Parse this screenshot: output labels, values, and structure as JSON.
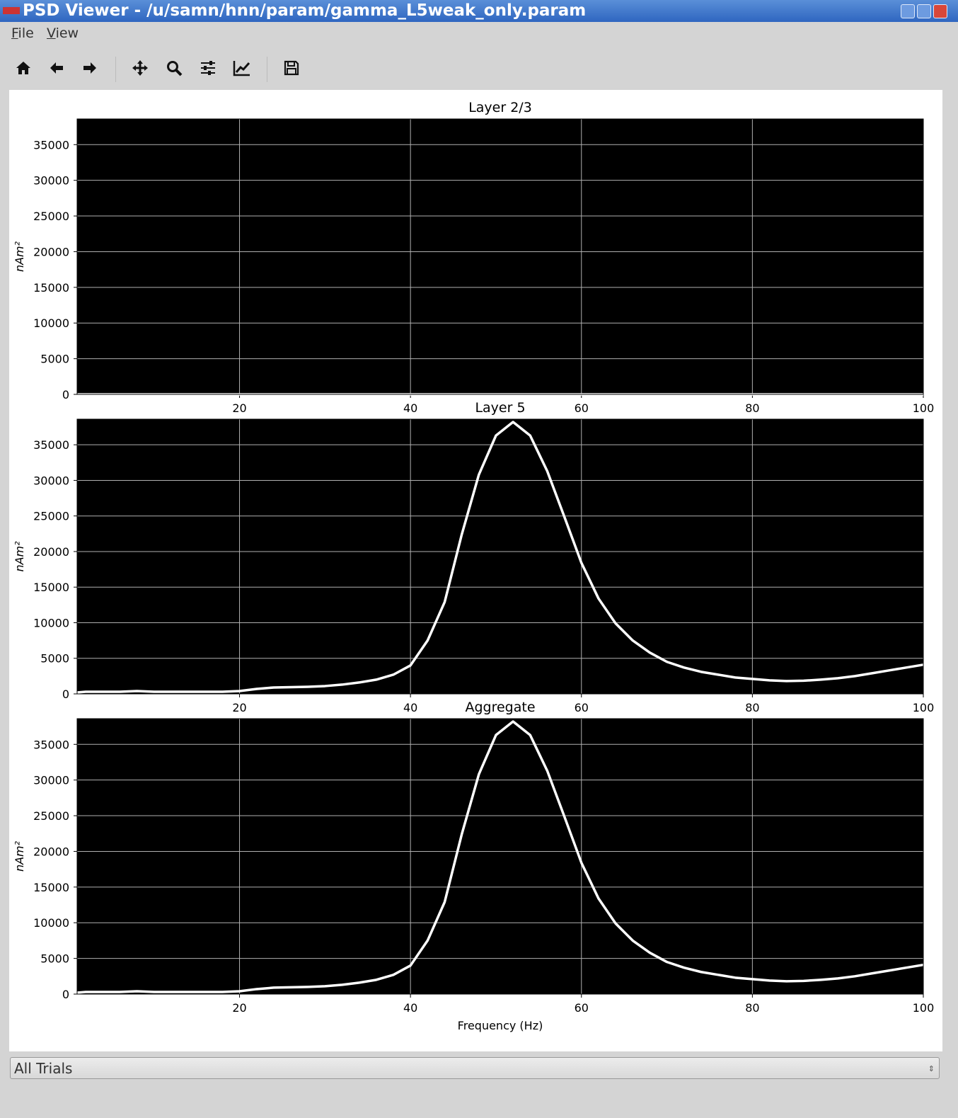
{
  "window": {
    "title": "PSD Viewer - /u/samn/hnn/param/gamma_L5weak_only.param"
  },
  "menu": [
    "File",
    "View"
  ],
  "chart_data": [
    {
      "type": "line",
      "title": "Layer 2/3",
      "ylabel": "nAm²",
      "x": [
        1,
        2,
        4,
        6,
        8,
        10,
        12,
        14,
        16,
        18,
        20,
        22,
        24,
        26,
        28,
        30,
        32,
        34,
        36,
        38,
        40,
        42,
        44,
        46,
        48,
        50,
        52,
        54,
        56,
        58,
        60,
        62,
        64,
        66,
        68,
        70,
        72,
        74,
        76,
        78,
        80,
        82,
        84,
        86,
        88,
        90,
        92,
        94,
        96,
        98,
        100
      ],
      "values": [
        0,
        0,
        0,
        0,
        0,
        0,
        0,
        0,
        0,
        0,
        0,
        0,
        0,
        0,
        0,
        0,
        0,
        0,
        0,
        0,
        0,
        0,
        0,
        0,
        0,
        0,
        0,
        0,
        0,
        0,
        0,
        0,
        0,
        0,
        0,
        0,
        0,
        0,
        0,
        0,
        0,
        0,
        0,
        0,
        0,
        0,
        0,
        0,
        0,
        0,
        0
      ],
      "color": "#ffffff",
      "xlim": [
        1,
        100
      ],
      "ylim": [
        0,
        38600
      ],
      "xticks": [
        20,
        40,
        60,
        80,
        100
      ],
      "yticks": [
        0,
        5000,
        10000,
        15000,
        20000,
        25000,
        30000,
        35000
      ],
      "grid": true
    },
    {
      "type": "line",
      "title": "Layer 5",
      "ylabel": "nAm²",
      "x": [
        1,
        2,
        4,
        6,
        8,
        10,
        12,
        14,
        16,
        18,
        20,
        22,
        24,
        26,
        28,
        30,
        32,
        34,
        36,
        38,
        40,
        42,
        44,
        46,
        48,
        50,
        52,
        54,
        56,
        58,
        60,
        62,
        64,
        66,
        68,
        70,
        72,
        74,
        76,
        78,
        80,
        82,
        84,
        86,
        88,
        90,
        92,
        94,
        96,
        98,
        100
      ],
      "values": [
        200,
        300,
        300,
        300,
        400,
        300,
        300,
        300,
        300,
        300,
        400,
        700,
        900,
        950,
        1000,
        1100,
        1300,
        1600,
        2000,
        2700,
        4000,
        7500,
        12900,
        22400,
        30800,
        36300,
        38200,
        36300,
        31300,
        24900,
        18400,
        13400,
        9900,
        7500,
        5800,
        4500,
        3700,
        3100,
        2700,
        2300,
        2100,
        1900,
        1800,
        1850,
        2000,
        2200,
        2500,
        2900,
        3300,
        3700,
        4100
      ],
      "color": "#ffffff",
      "xlim": [
        1,
        100
      ],
      "ylim": [
        0,
        38600
      ],
      "xticks": [
        20,
        40,
        60,
        80,
        100
      ],
      "yticks": [
        0,
        5000,
        10000,
        15000,
        20000,
        25000,
        30000,
        35000
      ],
      "grid": true
    },
    {
      "type": "line",
      "title": "Aggregate",
      "ylabel": "nAm²",
      "xlabel": "Frequency (Hz)",
      "x": [
        1,
        2,
        4,
        6,
        8,
        10,
        12,
        14,
        16,
        18,
        20,
        22,
        24,
        26,
        28,
        30,
        32,
        34,
        36,
        38,
        40,
        42,
        44,
        46,
        48,
        50,
        52,
        54,
        56,
        58,
        60,
        62,
        64,
        66,
        68,
        70,
        72,
        74,
        76,
        78,
        80,
        82,
        84,
        86,
        88,
        90,
        92,
        94,
        96,
        98,
        100
      ],
      "values": [
        200,
        300,
        300,
        300,
        400,
        300,
        300,
        300,
        300,
        300,
        400,
        700,
        900,
        950,
        1000,
        1100,
        1300,
        1600,
        2000,
        2700,
        4000,
        7500,
        12900,
        22400,
        30800,
        36300,
        38200,
        36300,
        31300,
        24900,
        18400,
        13400,
        9900,
        7500,
        5800,
        4500,
        3700,
        3100,
        2700,
        2300,
        2100,
        1900,
        1800,
        1850,
        2000,
        2200,
        2500,
        2900,
        3300,
        3700,
        4100
      ],
      "color": "#ffffff",
      "xlim": [
        1,
        100
      ],
      "ylim": [
        0,
        38600
      ],
      "xticks": [
        20,
        40,
        60,
        80,
        100
      ],
      "yticks": [
        0,
        5000,
        10000,
        15000,
        20000,
        25000,
        30000,
        35000
      ],
      "grid": true
    }
  ],
  "dropdown": "All Trials"
}
